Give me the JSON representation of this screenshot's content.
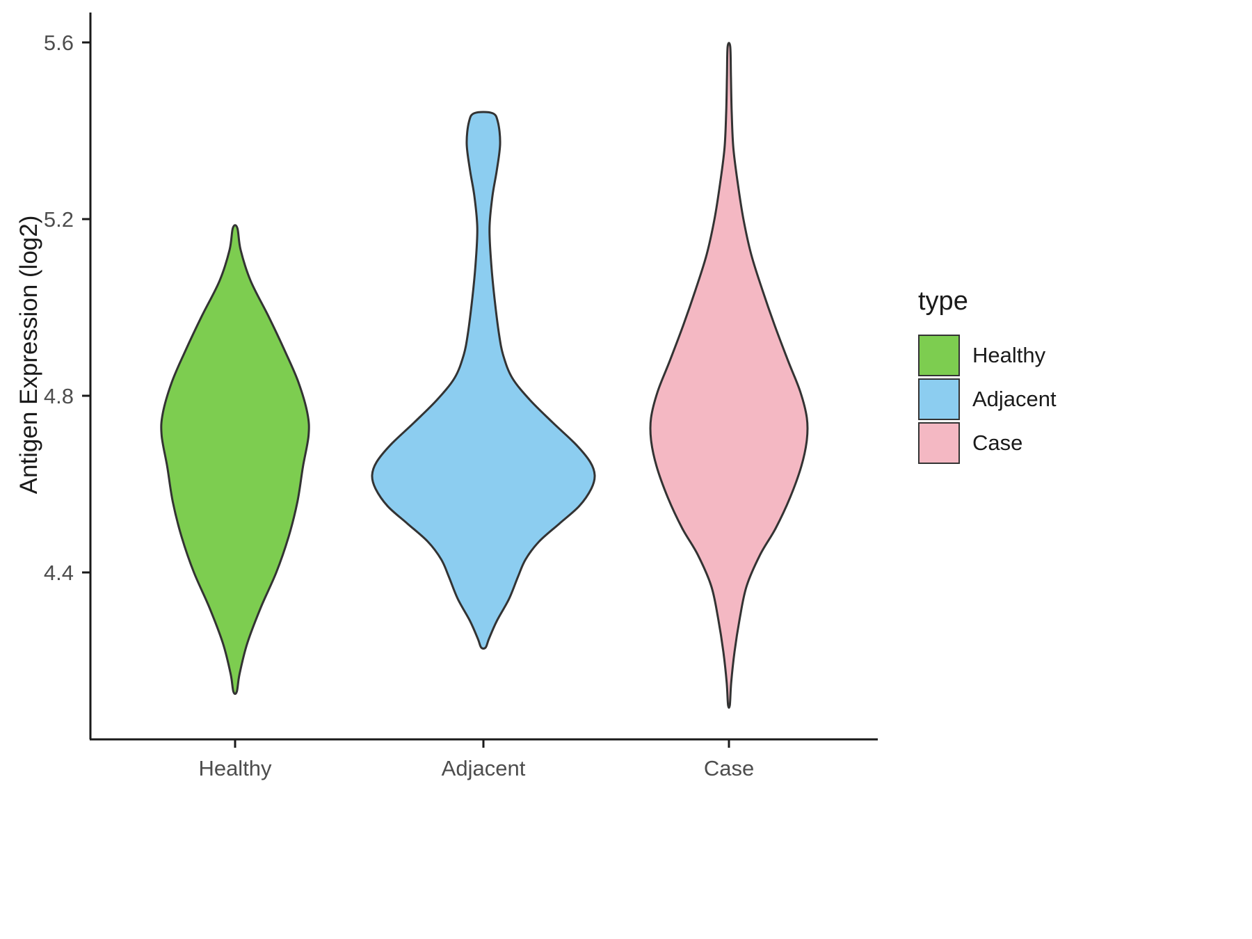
{
  "chart_data": {
    "type": "violin",
    "title": "",
    "xlabel": "",
    "ylabel": "Antigen Expression (log2)",
    "categories": [
      "Healthy",
      "Adjacent",
      "Case"
    ],
    "y_ticks": [
      4.4,
      4.8,
      5.2,
      5.6
    ],
    "ylim": [
      4.05,
      5.65
    ],
    "grid": "off",
    "legend": {
      "title": "type",
      "position": "right"
    },
    "colors": {
      "outline": "#333333",
      "axis_line": "#1a1a1a",
      "axis_text": "#4D4D4D"
    },
    "series": [
      {
        "name": "Healthy",
        "fill": "#7DCD50",
        "range": [
          4.13,
          5.18
        ],
        "peak": 4.72,
        "profile": [
          [
            5.18,
            0.02
          ],
          [
            5.13,
            0.05
          ],
          [
            5.06,
            0.14
          ],
          [
            4.98,
            0.3
          ],
          [
            4.9,
            0.45
          ],
          [
            4.83,
            0.57
          ],
          [
            4.76,
            0.65
          ],
          [
            4.71,
            0.66
          ],
          [
            4.64,
            0.61
          ],
          [
            4.56,
            0.56
          ],
          [
            4.48,
            0.48
          ],
          [
            4.4,
            0.37
          ],
          [
            4.32,
            0.23
          ],
          [
            4.24,
            0.11
          ],
          [
            4.17,
            0.04
          ],
          [
            4.13,
            0.015
          ]
        ]
      },
      {
        "name": "Adjacent",
        "fill": "#8CCDF0",
        "range": [
          4.23,
          5.44
        ],
        "peak": 4.62,
        "profile": [
          [
            5.44,
            0.08
          ],
          [
            5.42,
            0.13
          ],
          [
            5.37,
            0.15
          ],
          [
            5.31,
            0.12
          ],
          [
            5.25,
            0.08
          ],
          [
            5.18,
            0.055
          ],
          [
            5.1,
            0.07
          ],
          [
            5.02,
            0.1
          ],
          [
            4.94,
            0.14
          ],
          [
            4.89,
            0.18
          ],
          [
            4.84,
            0.26
          ],
          [
            4.79,
            0.42
          ],
          [
            4.74,
            0.62
          ],
          [
            4.69,
            0.83
          ],
          [
            4.65,
            0.96
          ],
          [
            4.62,
            1.0
          ],
          [
            4.59,
            0.97
          ],
          [
            4.55,
            0.86
          ],
          [
            4.51,
            0.68
          ],
          [
            4.47,
            0.5
          ],
          [
            4.43,
            0.38
          ],
          [
            4.39,
            0.31
          ],
          [
            4.34,
            0.23
          ],
          [
            4.29,
            0.12
          ],
          [
            4.25,
            0.05
          ],
          [
            4.23,
            0.02
          ]
        ]
      },
      {
        "name": "Case",
        "fill": "#F4B8C3",
        "range": [
          4.1,
          5.59
        ],
        "peak": 4.73,
        "profile": [
          [
            5.59,
            0.012
          ],
          [
            5.52,
            0.018
          ],
          [
            5.44,
            0.025
          ],
          [
            5.36,
            0.04
          ],
          [
            5.28,
            0.08
          ],
          [
            5.2,
            0.13
          ],
          [
            5.12,
            0.2
          ],
          [
            5.04,
            0.3
          ],
          [
            4.96,
            0.41
          ],
          [
            4.88,
            0.53
          ],
          [
            4.81,
            0.64
          ],
          [
            4.75,
            0.7
          ],
          [
            4.7,
            0.7
          ],
          [
            4.64,
            0.65
          ],
          [
            4.57,
            0.55
          ],
          [
            4.5,
            0.42
          ],
          [
            4.44,
            0.28
          ],
          [
            4.37,
            0.16
          ],
          [
            4.3,
            0.1
          ],
          [
            4.22,
            0.05
          ],
          [
            4.15,
            0.02
          ],
          [
            4.1,
            0.008
          ]
        ]
      }
    ]
  }
}
